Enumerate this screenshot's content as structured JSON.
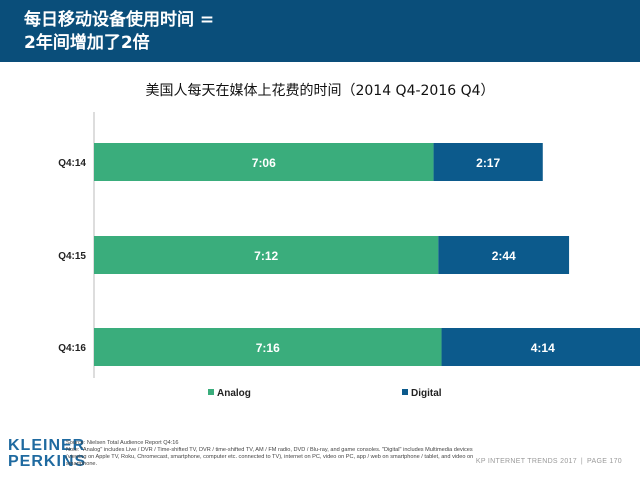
{
  "header": {
    "line1": "每日移动设备使用时间 =",
    "line2": "2年间增加了2倍"
  },
  "colors": {
    "header_bg": "#0a4e7a",
    "analog": "#3aad7c",
    "digital": "#0c5a8c"
  },
  "chart_data": {
    "type": "bar",
    "orientation": "horizontal",
    "stacked": true,
    "title": "美国人每天在媒体上花费的时间（2014 Q4-2016 Q4）",
    "categories": [
      "Q4:14",
      "Q4:15",
      "Q4:16"
    ],
    "series": [
      {
        "name": "Analog",
        "values_minutes": [
          426,
          432,
          436
        ],
        "labels": [
          "7:06",
          "7:12",
          "7:16"
        ]
      },
      {
        "name": "Digital",
        "values_minutes": [
          137,
          164,
          254
        ],
        "labels": [
          "2:17",
          "2:44",
          "4:14"
        ]
      }
    ],
    "unit": "hours:minutes per day",
    "xlim": [
      0,
      690
    ],
    "grid": false,
    "legend_position": "bottom"
  },
  "footer": {
    "logo": [
      "KLEINER",
      "PERKINS"
    ],
    "source": "Source: Nielsen Total Audience Report Q4:16",
    "note": "Note: \"Analog\" includes Live / DVR / Time-shifted TV, DVR / time-shifted TV, AM / FM radio, DVD / Blu-ray, and game consoles. \"Digital\" includes Multimedia devices (viewing on Apple TV, Roku, Chromecast, smartphone, computer etc. connected to TV), internet on PC, video on PC, app / web on smartphone / tablet, and video on smartphone.",
    "report": "KP INTERNET TRENDS 2017",
    "separator": "|",
    "page": "PAGE 170"
  }
}
